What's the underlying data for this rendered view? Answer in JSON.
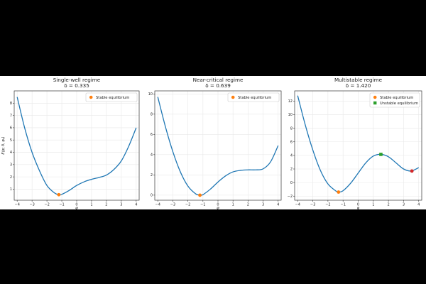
{
  "chart_data": [
    {
      "type": "line",
      "title": "Single-well regime",
      "subtitle": "δ = 0.335",
      "xlabel": "φ",
      "ylabel": "E(φ; δ, φ₀)",
      "xlim": [
        -4.2,
        4.2
      ],
      "ylim": [
        0.1,
        9.0
      ],
      "xticks": [
        -4,
        -3,
        -2,
        -1,
        0,
        1,
        2,
        3,
        4
      ],
      "yticks": [
        1,
        2,
        3,
        4,
        5,
        6,
        7,
        8
      ],
      "grid": true,
      "legend_position": "top-right",
      "series": [
        {
          "kind": "curve",
          "color": "#1f77b4",
          "x": [
            -4,
            -3.5,
            -3,
            -2.5,
            -2,
            -1.5,
            -1.2,
            -1,
            -0.5,
            0,
            0.5,
            1,
            1.5,
            2,
            2.5,
            3,
            3.5,
            4
          ],
          "y": [
            8.5,
            6.0,
            4.0,
            2.5,
            1.3,
            0.7,
            0.55,
            0.58,
            0.9,
            1.3,
            1.6,
            1.8,
            1.95,
            2.15,
            2.6,
            3.3,
            4.5,
            6.0
          ]
        },
        {
          "kind": "marker",
          "name": "Stable equilibrium",
          "marker": "circle",
          "color": "#ff7f0e",
          "x": [
            -1.2
          ],
          "y": [
            0.55
          ]
        }
      ]
    },
    {
      "type": "line",
      "title": "Near-critical regime",
      "subtitle": "δ = 0.639",
      "xlabel": "φ",
      "ylabel": "",
      "xlim": [
        -4.2,
        4.2
      ],
      "ylim": [
        -0.5,
        10.3
      ],
      "xticks": [
        -4,
        -3,
        -2,
        -1,
        0,
        1,
        2,
        3,
        4
      ],
      "yticks": [
        0,
        2,
        4,
        6,
        8,
        10
      ],
      "grid": true,
      "legend_position": "top-right",
      "series": [
        {
          "kind": "curve",
          "color": "#1f77b4",
          "x": [
            -4,
            -3.5,
            -3,
            -2.5,
            -2,
            -1.5,
            -1.2,
            -1,
            -0.5,
            0,
            0.5,
            1,
            1.5,
            2,
            2.5,
            3,
            3.5,
            4
          ],
          "y": [
            9.7,
            6.8,
            4.3,
            2.3,
            0.9,
            0.15,
            0.0,
            0.05,
            0.6,
            1.3,
            1.9,
            2.3,
            2.45,
            2.5,
            2.5,
            2.6,
            3.3,
            4.9
          ]
        },
        {
          "kind": "marker",
          "name": "Stable equilibrium",
          "marker": "circle",
          "color": "#ff7f0e",
          "x": [
            -1.2
          ],
          "y": [
            0.0
          ]
        }
      ]
    },
    {
      "type": "line",
      "title": "Multistable regime",
      "subtitle": "δ = 1.420",
      "xlabel": "φ",
      "ylabel": "",
      "xlim": [
        -4.2,
        4.2
      ],
      "ylim": [
        -2.6,
        13.5
      ],
      "xticks": [
        -4,
        -3,
        -2,
        -1,
        0,
        1,
        2,
        3,
        4
      ],
      "yticks": [
        -2,
        0,
        2,
        4,
        6,
        8,
        10,
        12
      ],
      "grid": true,
      "legend_position": "top-right",
      "series": [
        {
          "kind": "curve",
          "color": "#1f77b4",
          "x": [
            -4,
            -3.5,
            -3,
            -2.5,
            -2,
            -1.5,
            -1.3,
            -1,
            -0.5,
            0,
            0.5,
            1,
            1.5,
            2,
            2.5,
            3,
            3.5,
            4
          ],
          "y": [
            12.8,
            8.5,
            4.8,
            1.8,
            -0.2,
            -1.2,
            -1.4,
            -1.2,
            -0.1,
            1.4,
            2.9,
            3.9,
            4.15,
            3.8,
            2.9,
            2.0,
            1.7,
            2.2
          ]
        },
        {
          "kind": "marker",
          "name": "Stable equilibrium",
          "marker": "circle",
          "color": "#ff7f0e",
          "x": [
            -1.3
          ],
          "y": [
            -1.4
          ]
        },
        {
          "kind": "marker",
          "name": "Unstable equilibrium",
          "marker": "square",
          "color": "#2ca02c",
          "x": [
            1.5
          ],
          "y": [
            4.15
          ]
        },
        {
          "kind": "marker",
          "marker": "circle",
          "color": "#d62728",
          "x": [
            3.55
          ],
          "y": [
            1.7
          ]
        }
      ]
    }
  ]
}
